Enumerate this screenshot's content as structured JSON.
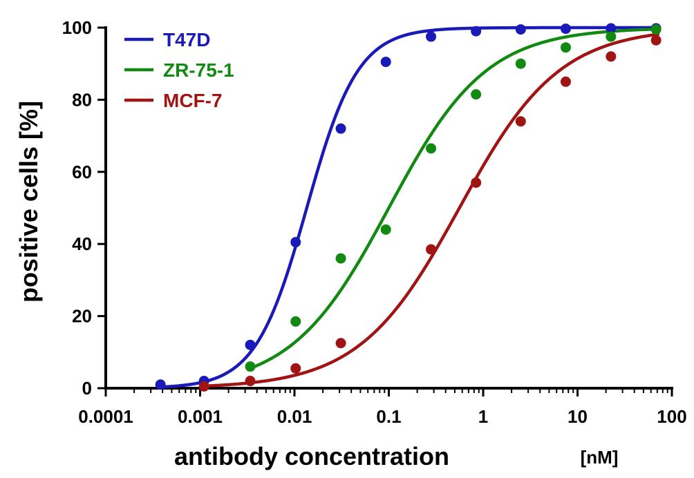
{
  "chart_data": {
    "type": "scatter",
    "xlabel": "antibody concentration",
    "xunit": "[nM]",
    "ylabel": "positive cells [%]",
    "xscale": "log",
    "xlim": [
      0.0001,
      100
    ],
    "ylim": [
      0,
      100
    ],
    "x_tick_labels": [
      "0.0001",
      "0.001",
      "0.01",
      "0.1",
      "1",
      "10",
      "100"
    ],
    "x_ticks": [
      0.0001,
      0.001,
      0.01,
      0.1,
      1,
      10,
      100
    ],
    "y_tick_labels": [
      "0",
      "20",
      "40",
      "60",
      "80",
      "100"
    ],
    "y_ticks": [
      0,
      20,
      40,
      60,
      80,
      100
    ],
    "legend_position": "top-left",
    "grid": false,
    "series": [
      {
        "name": "T47D",
        "color": "#1a1ab8",
        "x": [
          0.00038,
          0.0011,
          0.0034,
          0.0103,
          0.031,
          0.093,
          0.28,
          0.84,
          2.5,
          7.5,
          22.6,
          68
        ],
        "y": [
          1,
          2,
          12,
          40.5,
          72,
          90.5,
          97.5,
          99,
          99.5,
          99.7,
          99.8,
          99.8
        ],
        "fit": {
          "ec50": 0.0135,
          "hill": 1.6
        }
      },
      {
        "name": "ZR-75-1",
        "color": "#128a12",
        "x": [
          0.0034,
          0.0103,
          0.031,
          0.093,
          0.28,
          0.84,
          2.5,
          7.5,
          22.6,
          68
        ],
        "y": [
          6,
          18.5,
          36,
          44,
          66.5,
          81.5,
          90,
          94.5,
          97.5,
          99.5
        ],
        "fit": {
          "ec50": 0.1,
          "hill": 0.84
        }
      },
      {
        "name": "MCF-7",
        "color": "#a01414",
        "x": [
          0.0011,
          0.0034,
          0.0103,
          0.031,
          0.28,
          0.84,
          2.5,
          7.5,
          22.6,
          68
        ],
        "y": [
          0.5,
          2,
          5.5,
          12.5,
          38.5,
          57,
          74,
          85,
          92,
          96.5
        ],
        "fit": {
          "ec50": 0.56,
          "hill": 0.82
        }
      }
    ]
  }
}
